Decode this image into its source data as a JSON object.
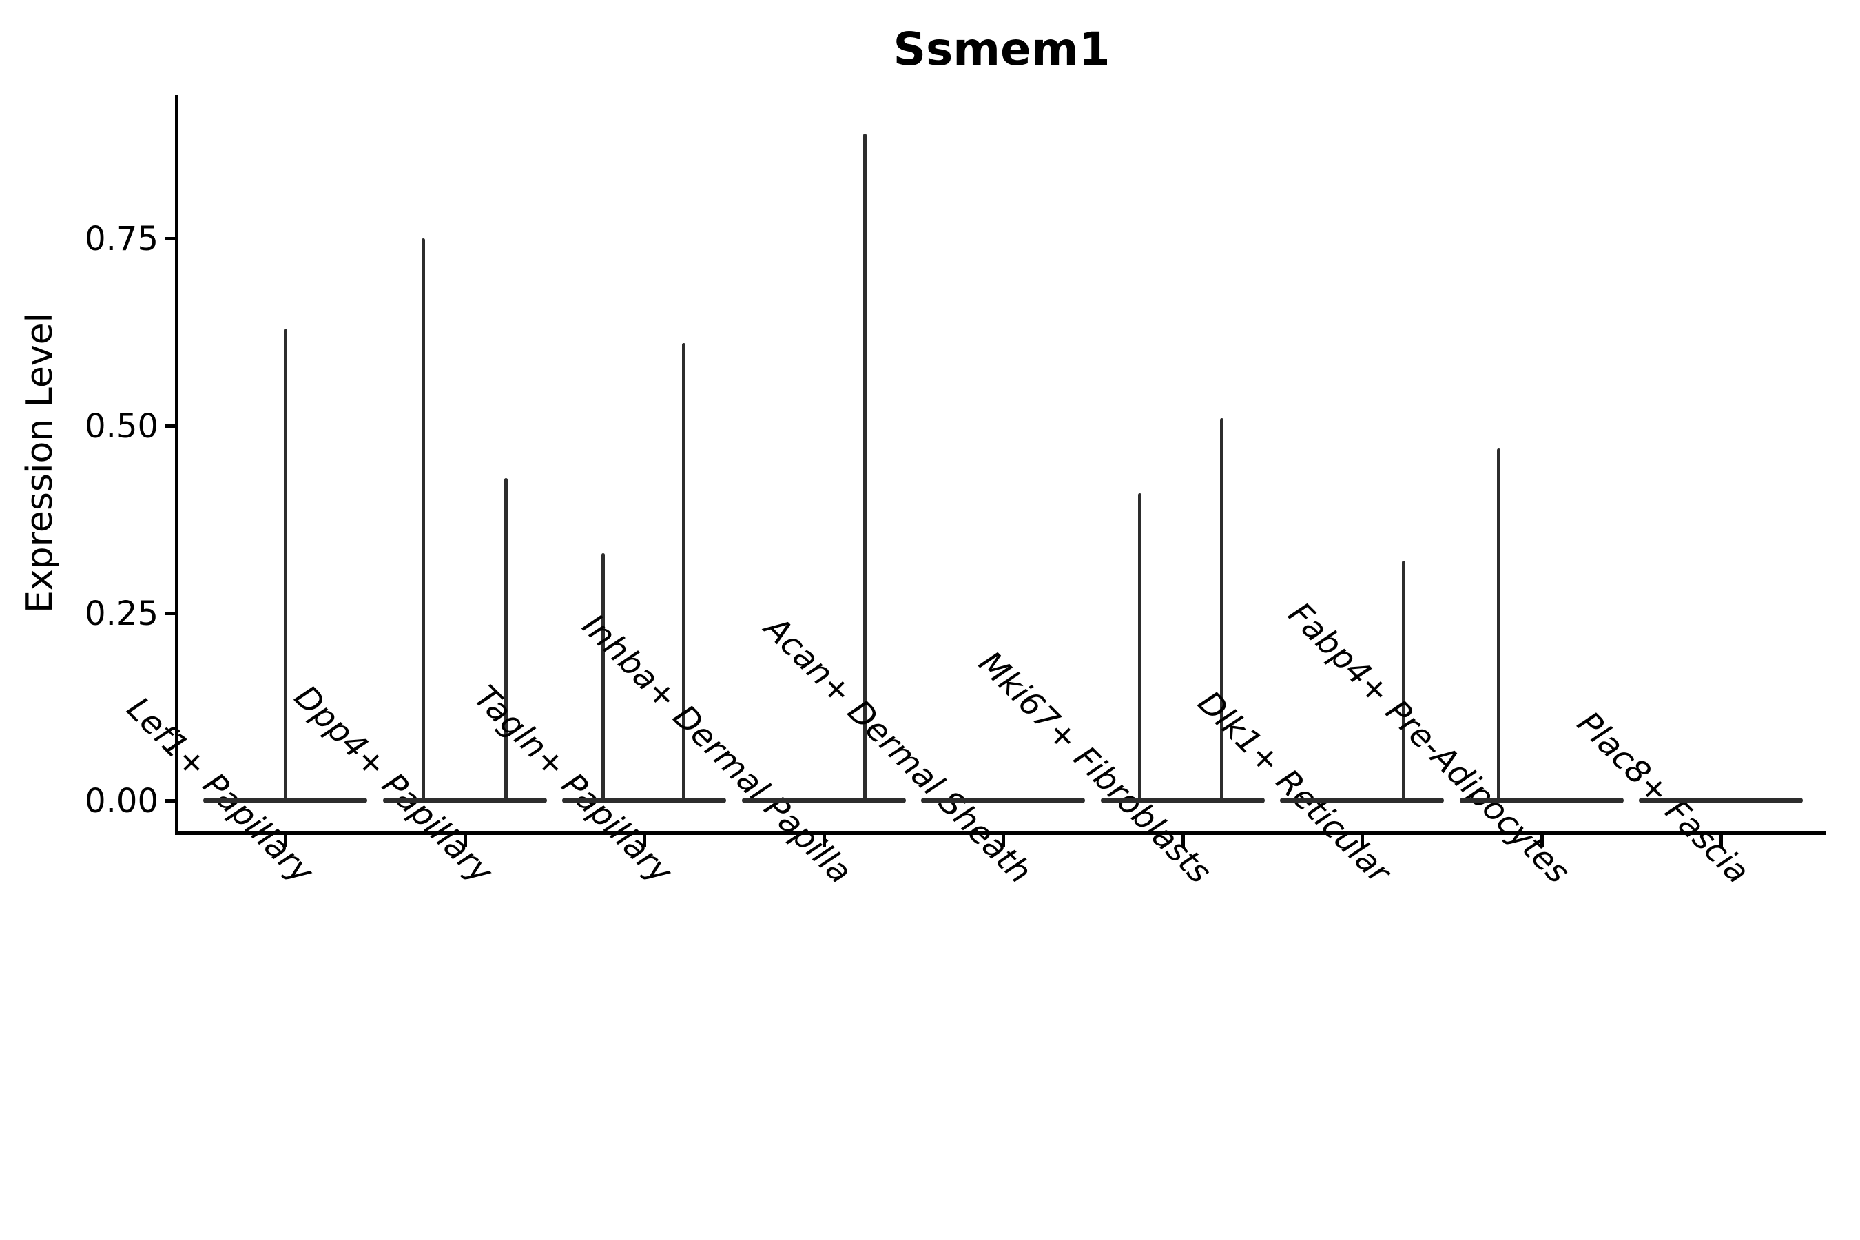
{
  "chart_data": {
    "type": "violin",
    "title": "Ssmem1",
    "ylabel": "Expression Level",
    "xlabel": "",
    "ylim": [
      0,
      0.94
    ],
    "yticks": [
      {
        "label": "0.00",
        "value": 0.0
      },
      {
        "label": "0.25",
        "value": 0.25
      },
      {
        "label": "0.50",
        "value": 0.5
      },
      {
        "label": "0.75",
        "value": 0.75
      }
    ],
    "grid": false,
    "legend": "none",
    "xtick_angle": 45,
    "xtick_style": "italic",
    "categories": [
      "Lef1+ Papillary",
      "Dpp4+ Papillary",
      "Tagln+ Papillary",
      "Inhba+ Dermal Papilla",
      "Acan+ Dermal Sheath",
      "Mki67+ Fibroblasts",
      "Dlk1+ Reticular",
      "Fabp4+ Pre-Adipocytes",
      "Plac8+ Fascia"
    ],
    "violins": [
      {
        "category": "Lef1+ Papillary",
        "zero_mass": true,
        "spikes": [
          {
            "offset": 0.0,
            "max": 0.63
          }
        ]
      },
      {
        "category": "Dpp4+ Papillary",
        "zero_mass": true,
        "spikes": [
          {
            "offset": -0.23,
            "max": 0.75
          },
          {
            "offset": 0.23,
            "max": 0.43
          }
        ]
      },
      {
        "category": "Tagln+ Papillary",
        "zero_mass": true,
        "spikes": [
          {
            "offset": -0.23,
            "max": 0.33
          },
          {
            "offset": 0.22,
            "max": 0.61
          }
        ]
      },
      {
        "category": "Inhba+ Dermal Papilla",
        "zero_mass": true,
        "spikes": [
          {
            "offset": 0.23,
            "max": 0.89
          }
        ]
      },
      {
        "category": "Acan+ Dermal Sheath",
        "zero_mass": true,
        "spikes": []
      },
      {
        "category": "Mki67+ Fibroblasts",
        "zero_mass": true,
        "spikes": [
          {
            "offset": -0.24,
            "max": 0.41
          },
          {
            "offset": 0.22,
            "max": 0.51
          }
        ]
      },
      {
        "category": "Dlk1+ Reticular",
        "zero_mass": true,
        "spikes": [
          {
            "offset": 0.23,
            "max": 0.32
          }
        ]
      },
      {
        "category": "Fabp4+ Pre-Adipocytes",
        "zero_mass": true,
        "spikes": [
          {
            "offset": -0.24,
            "max": 0.47
          }
        ]
      },
      {
        "category": "Plac8+ Fascia",
        "zero_mass": true,
        "spikes": []
      }
    ],
    "colors": {
      "violin_line": "#2d2d2d",
      "axis": "#000000",
      "text": "#000000",
      "background": "#ffffff"
    }
  }
}
